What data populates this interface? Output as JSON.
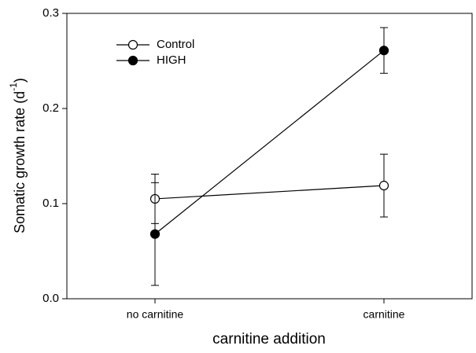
{
  "chart_data": {
    "type": "line",
    "categories": [
      "no carnitine",
      "carnitine"
    ],
    "series": [
      {
        "name": "Control",
        "color": "#000000",
        "marker": "open",
        "values": [
          0.105,
          0.119
        ],
        "errors": [
          0.026,
          0.033
        ]
      },
      {
        "name": "HIGH",
        "color": "#000000",
        "marker": "filled",
        "values": [
          0.068,
          0.261
        ],
        "errors": [
          0.054,
          0.024
        ]
      }
    ],
    "ylabel_parts": [
      "Somatic growth rate (d",
      "-1",
      ")"
    ],
    "xlabel": "carnitine addition",
    "ylim": [
      0,
      0.3
    ],
    "yticks": [
      {
        "value": 0,
        "label": "0.0"
      },
      0.1,
      0.2,
      0.3
    ],
    "legend": "upper left"
  }
}
